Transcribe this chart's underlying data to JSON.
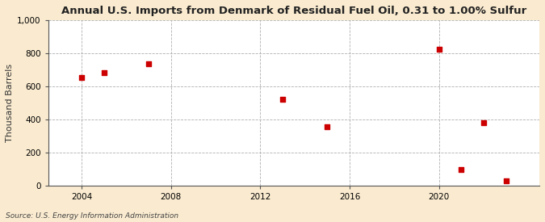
{
  "title": "Annual U.S. Imports from Denmark of Residual Fuel Oil, 0.31 to 1.00% Sulfur",
  "ylabel": "Thousand Barrels",
  "source": "Source: U.S. Energy Information Administration",
  "background_color": "#faebd0",
  "plot_background_color": "#ffffff",
  "data_points": [
    {
      "year": 2004,
      "value": 655
    },
    {
      "year": 2005,
      "value": 685
    },
    {
      "year": 2007,
      "value": 735
    },
    {
      "year": 2013,
      "value": 520
    },
    {
      "year": 2015,
      "value": 355
    },
    {
      "year": 2020,
      "value": 825
    },
    {
      "year": 2021,
      "value": 95
    },
    {
      "year": 2022,
      "value": 380
    },
    {
      "year": 2023,
      "value": 30
    }
  ],
  "marker_color": "#cc0000",
  "marker": "s",
  "marker_size": 4,
  "xlim": [
    2002.5,
    2024.5
  ],
  "ylim": [
    0,
    1000
  ],
  "xticks": [
    2004,
    2008,
    2012,
    2016,
    2020
  ],
  "yticks": [
    0,
    200,
    400,
    600,
    800,
    1000
  ],
  "ytick_labels": [
    "0",
    "200",
    "400",
    "600",
    "800",
    "1,000"
  ],
  "grid_color": "#b0b0b0",
  "title_fontsize": 9.5,
  "ylabel_fontsize": 8,
  "tick_fontsize": 7.5,
  "source_fontsize": 6.5
}
